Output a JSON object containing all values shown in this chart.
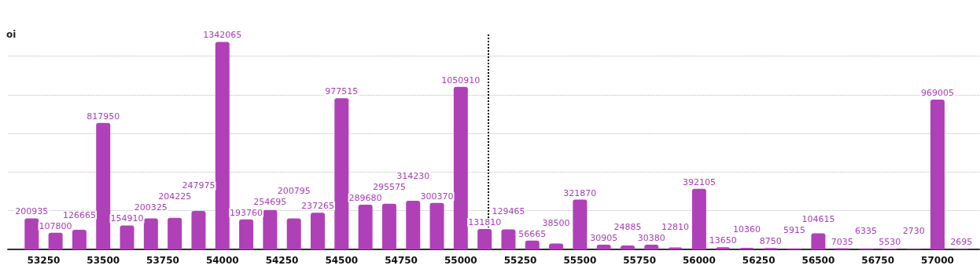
{
  "chart_data": {
    "type": "bar",
    "ylabel": "oi",
    "x": [
      53200,
      53300,
      53400,
      53500,
      53600,
      53700,
      53800,
      53900,
      54000,
      54100,
      54200,
      54300,
      54400,
      54500,
      54600,
      54700,
      54800,
      54900,
      55000,
      55100,
      55200,
      55300,
      55400,
      55500,
      55600,
      55700,
      55800,
      55900,
      56000,
      56100,
      56200,
      56300,
      56400,
      56500,
      56600,
      56700,
      56800,
      56900,
      57000,
      57100
    ],
    "values": [
      200935,
      107800,
      126665,
      817950,
      154910,
      200325,
      204225,
      247975,
      1342065,
      193760,
      254695,
      200795,
      237265,
      977515,
      289680,
      295575,
      314230,
      300370,
      1050910,
      131810,
      129465,
      56665,
      38500,
      321870,
      30905,
      24885,
      30380,
      12810,
      392105,
      13650,
      10360,
      8750,
      5915,
      104615,
      7035,
      6335,
      5530,
      2730,
      969005,
      2695
    ],
    "color": "#b040b8",
    "data_labels": true,
    "xlim": [
      53100,
      57175
    ],
    "xticks": [
      53250,
      53500,
      53750,
      54000,
      54250,
      54500,
      54750,
      55000,
      55250,
      55500,
      55750,
      56000,
      56250,
      56500,
      56750,
      57000
    ],
    "ylim": [
      0,
      1400000
    ],
    "yticks": [
      {
        "value": 0,
        "label": null
      },
      {
        "value": 250000,
        "label": null
      },
      {
        "value": 500000,
        "label": null
      },
      {
        "value": 750000,
        "label": null
      },
      {
        "value": 1000000,
        "label": null
      },
      {
        "value": 1250000,
        "label": null
      }
    ],
    "tick_labels": "x",
    "grid": "y",
    "ref_lines": [
      {
        "axis": "x",
        "value": 55115,
        "label": null,
        "line_style": "dotted",
        "color": "#000000"
      }
    ]
  }
}
